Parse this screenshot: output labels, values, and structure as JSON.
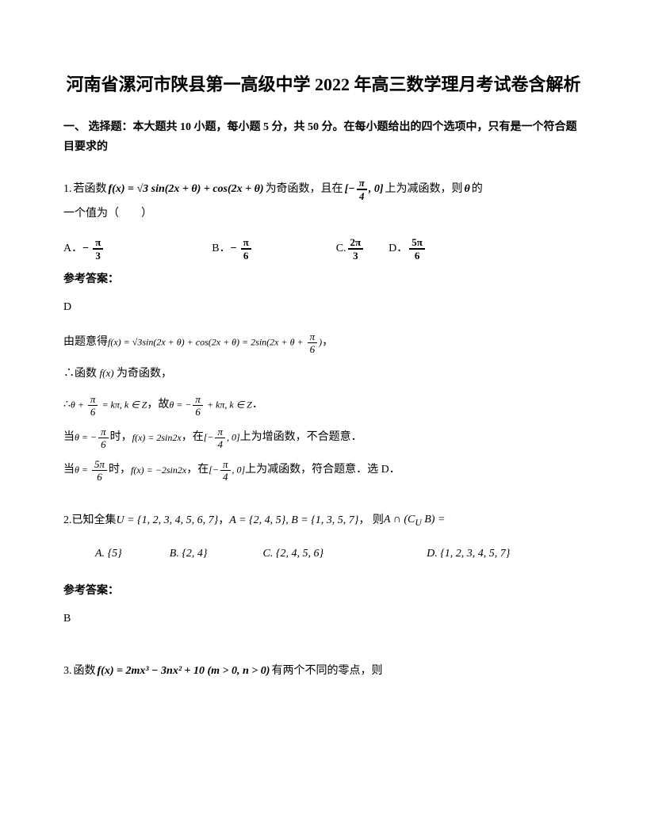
{
  "title": "河南省漯河市陕县第一高级中学 2022 年高三数学理月考试卷含解析",
  "section_header": "一、 选择题：本大题共 10 小题，每小题 5 分，共 50 分。在每小题给出的四个选项中，只有是一个符合题目要求的",
  "q1": {
    "num": "1. ",
    "text_before": "若函数 ",
    "formula": "f(x) = √3 sin(2x + θ) + cos(2x + θ)",
    "text_mid": " 为奇函数，且在 ",
    "interval": "[−π/4, 0]",
    "text_after1": " 上为减函数，则 ",
    "theta": "θ",
    "text_after2": " 的",
    "line2": "一个值为（　　）",
    "options": {
      "a_label": "A．",
      "a_val_num": "π",
      "a_val_den": "3",
      "b_label": "B．",
      "b_val_num": "π",
      "b_val_den": "6",
      "c_label": "C. ",
      "c_val_num": "2π",
      "c_val_den": "3",
      "d_label": "D．",
      "d_val_num": "5π",
      "d_val_den": "6"
    },
    "answer_label": "参考答案：",
    "answer_value": "D",
    "solution": {
      "line1_prefix": "由题意得",
      "line1_formula": "f(x) = √3sin(2x + θ) + cos(2x + θ) = 2sin(2x + θ + π/6)",
      "line1_suffix": "，",
      "line2": "∴函数 f(x) 为奇函数，",
      "line3_prefix": "∴ ",
      "line3_f1": "θ + π/6 = kπ, k ∈ Z",
      "line3_mid": "，故 ",
      "line3_f2": "θ = −π/6 + kπ, k ∈ Z",
      "line3_suffix": "．",
      "line4_prefix": "当 ",
      "line4_f1": "θ = −π/6",
      "line4_mid1": " 时，",
      "line4_f2": "f(x) = 2sin2x",
      "line4_mid2": "，在 ",
      "line4_f3": "[−π/4, 0]",
      "line4_suffix": " 上为增函数，不合题意．",
      "line5_prefix": "当 ",
      "line5_f1": "θ = 5π/6",
      "line5_mid1": " 时，",
      "line5_f2": "f(x) = −2sin2x",
      "line5_mid2": "，在 ",
      "line5_f3": "[−π/4, 0]",
      "line5_suffix": " 上为减函数，符合题意．选 D．"
    }
  },
  "q2": {
    "num": "2. ",
    "text_before": "已知全集 ",
    "set_u": "U = {1, 2, 3, 4, 5, 6, 7}",
    "comma1": "，",
    "set_ab": "A = {2, 4, 5}, B = {1, 3, 5, 7}",
    "comma2": "， 则 ",
    "expr": "A ∩ (C_U B) =",
    "options": {
      "a_label": "A.",
      "a_val": "{5}",
      "b_label": "B.",
      "b_val": "{2, 4}",
      "c_label": "C.",
      "c_val": "{2, 4, 5, 6}",
      "d_label": "D.",
      "d_val": "{1, 2, 3, 4, 5, 7}"
    },
    "answer_label": "参考答案：",
    "answer_value": "B"
  },
  "q3": {
    "num": "3. ",
    "text_before": "函数 ",
    "formula": "f(x) = 2mx³ − 3nx² + 10 (m > 0, n > 0)",
    "text_after": " 有两个不同的零点，则"
  }
}
